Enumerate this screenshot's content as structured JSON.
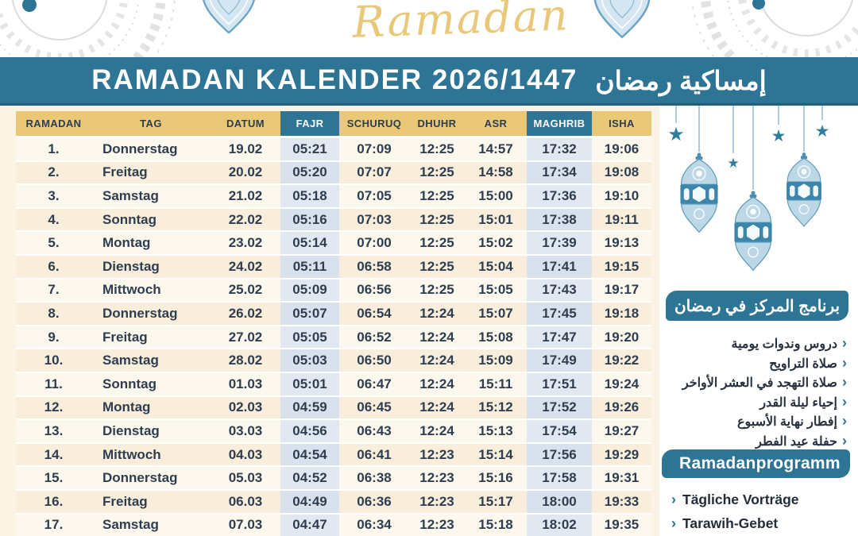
{
  "header": {
    "script_title": "Ramadan",
    "banner_title": "RAMADAN KALENDER 2026/1447",
    "banner_title_arabic": "إمساكية رمضان"
  },
  "table": {
    "headers": [
      "RAMADAN",
      "TAG",
      "DATUM",
      "FAJR",
      "SCHURUQ",
      "DHUHR",
      "ASR",
      "MAGHRIB",
      "ISHA"
    ],
    "accent_columns": [
      3,
      7
    ],
    "rows": [
      [
        "1.",
        "Donnerstag",
        "19.02",
        "05:21",
        "07:09",
        "12:25",
        "14:57",
        "17:32",
        "19:06"
      ],
      [
        "2.",
        "Freitag",
        "20.02",
        "05:20",
        "07:07",
        "12:25",
        "14:58",
        "17:34",
        "19:08"
      ],
      [
        "3.",
        "Samstag",
        "21.02",
        "05:18",
        "07:05",
        "12:25",
        "15:00",
        "17:36",
        "19:10"
      ],
      [
        "4.",
        "Sonntag",
        "22.02",
        "05:16",
        "07:03",
        "12:25",
        "15:01",
        "17:38",
        "19:11"
      ],
      [
        "5.",
        "Montag",
        "23.02",
        "05:14",
        "07:00",
        "12:25",
        "15:02",
        "17:39",
        "19:13"
      ],
      [
        "6.",
        "Dienstag",
        "24.02",
        "05:11",
        "06:58",
        "12:25",
        "15:04",
        "17:41",
        "19:15"
      ],
      [
        "7.",
        "Mittwoch",
        "25.02",
        "05:09",
        "06:56",
        "12:25",
        "15:05",
        "17:43",
        "19:17"
      ],
      [
        "8.",
        "Donnerstag",
        "26.02",
        "05:07",
        "06:54",
        "12:24",
        "15:07",
        "17:45",
        "19:18"
      ],
      [
        "9.",
        "Freitag",
        "27.02",
        "05:05",
        "06:52",
        "12:24",
        "15:08",
        "17:47",
        "19:20"
      ],
      [
        "10.",
        "Samstag",
        "28.02",
        "05:03",
        "06:50",
        "12:24",
        "15:09",
        "17:49",
        "19:22"
      ],
      [
        "11.",
        "Sonntag",
        "01.03",
        "05:01",
        "06:47",
        "12:24",
        "15:11",
        "17:51",
        "19:24"
      ],
      [
        "12.",
        "Montag",
        "02.03",
        "04:59",
        "06:45",
        "12:24",
        "15:12",
        "17:52",
        "19:26"
      ],
      [
        "13.",
        "Dienstag",
        "03.03",
        "04:56",
        "06:43",
        "12:24",
        "15:13",
        "17:54",
        "19:27"
      ],
      [
        "14.",
        "Mittwoch",
        "04.03",
        "04:54",
        "06:41",
        "12:23",
        "15:14",
        "17:56",
        "19:29"
      ],
      [
        "15.",
        "Donnerstag",
        "05.03",
        "04:52",
        "06:38",
        "12:23",
        "15:16",
        "17:58",
        "19:31"
      ],
      [
        "16.",
        "Freitag",
        "06.03",
        "04:49",
        "06:36",
        "12:23",
        "15:17",
        "18:00",
        "19:33"
      ],
      [
        "17.",
        "Samstag",
        "07.03",
        "04:47",
        "06:34",
        "12:23",
        "15:18",
        "18:02",
        "19:35"
      ]
    ]
  },
  "sidebar": {
    "arabic_program_heading": "برنامج المركز في رمضان",
    "arabic_program_items": [
      "دروس وندوات يومية",
      "صلاة التراويح",
      "صلاة التهجد في العشر الأواخر",
      "إحياء ليلة القدر",
      "إفطار نهاية الأسبوع",
      "حفلة عيد الفطر"
    ],
    "german_program_heading": "Ramadanprogramm",
    "german_program_items": [
      "Tägliche Vorträge",
      "Tarawih-Gebet"
    ]
  },
  "icons": {
    "list_marker_rtl": "‹",
    "list_marker_ltr": "›",
    "star": "★"
  },
  "colors": {
    "teal": "#2d7495",
    "gold_header": "#e9c878",
    "gold_script": "#e9c87a",
    "cream_background": "#fbf3e4",
    "row_light": "#fdf8ee",
    "row_dark": "#f8eedb",
    "fajr_maghrib_column_light": "#e1e8f2",
    "fajr_maghrib_column_dark": "#d9e1ed",
    "text_dark": "#2e3d4f"
  }
}
